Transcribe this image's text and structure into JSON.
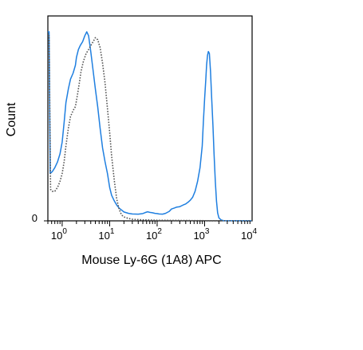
{
  "chart_data": {
    "type": "line",
    "title": "",
    "xlabel": "Mouse Ly-6G (1A8) APC",
    "ylabel": "Count",
    "x_scale": "log",
    "xlim": [
      0.5,
      10000
    ],
    "ylim": [
      0,
      100
    ],
    "grid": false,
    "legend": "none",
    "x_ticks": [
      {
        "base": "10",
        "exp": "0",
        "value": 1
      },
      {
        "base": "10",
        "exp": "1",
        "value": 10
      },
      {
        "base": "10",
        "exp": "2",
        "value": 100
      },
      {
        "base": "10",
        "exp": "3",
        "value": 1000
      },
      {
        "base": "10",
        "exp": "4",
        "value": 10000
      }
    ],
    "y_ticks": [
      {
        "label": "0",
        "value": 0
      }
    ],
    "series": [
      {
        "style": "solid",
        "color": "#1f7fe0",
        "points": [
          [
            0.5,
            96
          ],
          [
            0.53,
            96
          ],
          [
            0.56,
            24
          ],
          [
            0.62,
            25
          ],
          [
            0.7,
            27
          ],
          [
            0.8,
            30
          ],
          [
            0.9,
            34
          ],
          [
            1.0,
            40
          ],
          [
            1.1,
            50
          ],
          [
            1.2,
            60
          ],
          [
            1.35,
            67
          ],
          [
            1.5,
            72
          ],
          [
            1.7,
            75
          ],
          [
            1.9,
            79
          ],
          [
            2.0,
            83
          ],
          [
            2.2,
            87
          ],
          [
            2.4,
            89
          ],
          [
            2.7,
            91
          ],
          [
            3.0,
            94
          ],
          [
            3.3,
            96
          ],
          [
            3.6,
            94
          ],
          [
            4.0,
            86
          ],
          [
            4.5,
            76
          ],
          [
            5.0,
            67
          ],
          [
            5.6,
            58
          ],
          [
            6.3,
            47
          ],
          [
            7.1,
            37
          ],
          [
            8.0,
            30
          ],
          [
            9.0,
            24
          ],
          [
            10.0,
            17
          ],
          [
            11,
            13
          ],
          [
            12.6,
            10
          ],
          [
            14.1,
            8
          ],
          [
            15.8,
            6.5
          ],
          [
            17.8,
            5.5
          ],
          [
            20,
            4.5
          ],
          [
            25,
            3.8
          ],
          [
            30,
            3.5
          ],
          [
            40,
            3.4
          ],
          [
            50,
            3.7
          ],
          [
            56,
            4.2
          ],
          [
            63,
            4.6
          ],
          [
            70,
            4.3
          ],
          [
            80,
            4.1
          ],
          [
            90,
            3.8
          ],
          [
            100,
            3.7
          ],
          [
            110,
            3.5
          ],
          [
            130,
            3.4
          ],
          [
            150,
            3.8
          ],
          [
            180,
            4.8
          ],
          [
            200,
            6
          ],
          [
            230,
            6.5
          ],
          [
            260,
            7
          ],
          [
            300,
            7.2
          ],
          [
            350,
            8
          ],
          [
            400,
            8.6
          ],
          [
            450,
            9.5
          ],
          [
            500,
            10.5
          ],
          [
            560,
            12
          ],
          [
            630,
            15
          ],
          [
            710,
            20
          ],
          [
            800,
            27
          ],
          [
            890,
            38
          ],
          [
            940,
            50
          ],
          [
            1000,
            62
          ],
          [
            1060,
            72
          ],
          [
            1100,
            79
          ],
          [
            1150,
            84
          ],
          [
            1200,
            86
          ],
          [
            1260,
            85
          ],
          [
            1330,
            76
          ],
          [
            1410,
            62
          ],
          [
            1500,
            48
          ],
          [
            1580,
            34
          ],
          [
            1680,
            20
          ],
          [
            1780,
            10
          ],
          [
            1880,
            4
          ],
          [
            2000,
            1.5
          ],
          [
            2240,
            0.4
          ],
          [
            2510,
            0.1
          ],
          [
            10000,
            0
          ]
        ]
      },
      {
        "style": "dotted",
        "color": "#555555",
        "points": [
          [
            0.5,
            94
          ],
          [
            0.53,
            94
          ],
          [
            0.57,
            16
          ],
          [
            0.62,
            15
          ],
          [
            0.7,
            15
          ],
          [
            0.8,
            17
          ],
          [
            0.9,
            20
          ],
          [
            1.0,
            24
          ],
          [
            1.1,
            30
          ],
          [
            1.2,
            38
          ],
          [
            1.35,
            47
          ],
          [
            1.5,
            53
          ],
          [
            1.7,
            56
          ],
          [
            1.9,
            58
          ],
          [
            2.1,
            64
          ],
          [
            2.3,
            70
          ],
          [
            2.5,
            76
          ],
          [
            2.8,
            81
          ],
          [
            3.2,
            85
          ],
          [
            3.6,
            87
          ],
          [
            4.0,
            89
          ],
          [
            4.5,
            91
          ],
          [
            5.0,
            93
          ],
          [
            5.6,
            92
          ],
          [
            6.3,
            88
          ],
          [
            7.1,
            80
          ],
          [
            8.0,
            70
          ],
          [
            9.0,
            57
          ],
          [
            10.0,
            45
          ],
          [
            11,
            33
          ],
          [
            12.6,
            20
          ],
          [
            14.1,
            11
          ],
          [
            15.8,
            6
          ],
          [
            17.8,
            3
          ],
          [
            20,
            2
          ],
          [
            25,
            1.2
          ],
          [
            30,
            0.8
          ],
          [
            50,
            0.5
          ],
          [
            100,
            0.3
          ],
          [
            1000,
            0.1
          ],
          [
            10000,
            0
          ]
        ]
      }
    ]
  }
}
